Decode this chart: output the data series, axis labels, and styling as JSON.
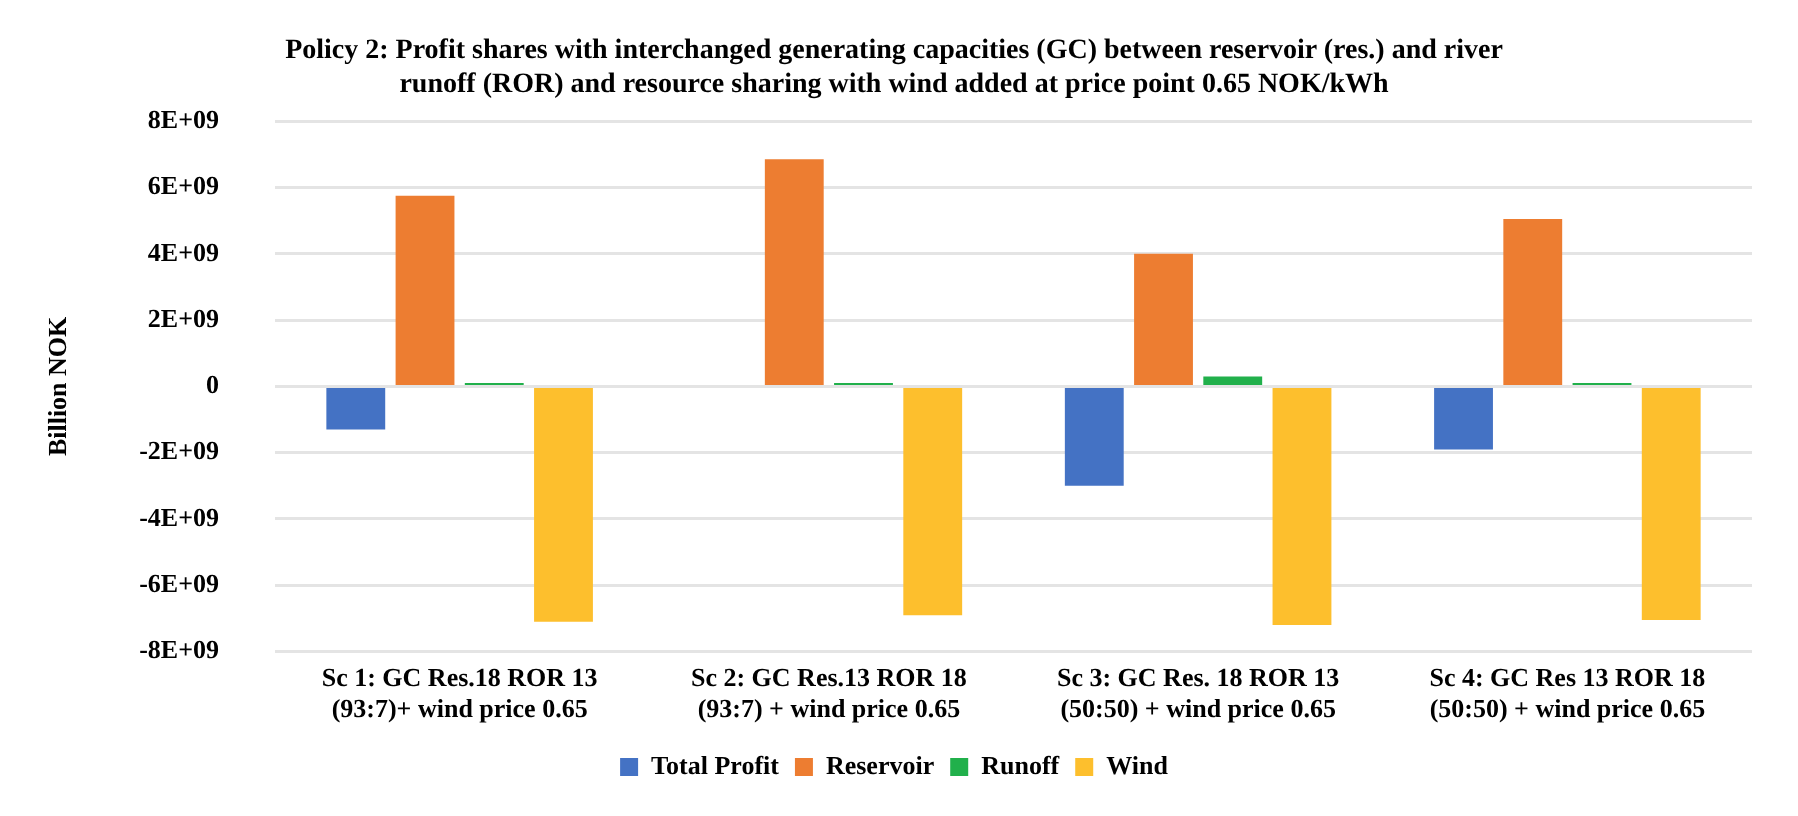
{
  "chart_data": {
    "type": "bar",
    "title": "Policy 2: Profit shares with interchanged generating capacities (GC) between reservoir (res.) and river runoff (ROR) and resource sharing with wind added at price point 0.65 NOK/kWh",
    "ylabel": "Billion NOK",
    "categories": [
      "Sc 1: GC Res.18 ROR 13 (93:7)+ wind price 0.65",
      "Sc 2: GC Res.13 ROR 18 (93:7) + wind price 0.65",
      "Sc 3: GC Res. 18 ROR 13 (50:50) + wind price 0.65",
      "Sc 4: GC Res 13 ROR 18 (50:50) + wind price 0.65"
    ],
    "series": [
      {
        "name": "Total Profit",
        "color": "#4472c4",
        "values": [
          -1300000000.0,
          0,
          -3000000000.0,
          -1900000000.0
        ]
      },
      {
        "name": "Reservoir",
        "color": "#ed7d31",
        "values": [
          5750000000.0,
          6850000000.0,
          4000000000.0,
          5050000000.0
        ]
      },
      {
        "name": "Runoff",
        "color": "#21b04b",
        "values": [
          100000000.0,
          100000000.0,
          300000000.0,
          100000000.0
        ]
      },
      {
        "name": "Wind",
        "color": "#fdbf2d",
        "values": [
          -7100000000.0,
          -6900000000.0,
          -7200000000.0,
          -7050000000.0
        ]
      }
    ],
    "ylim": [
      -8000000000.0,
      8000000000.0
    ],
    "yticks": [
      {
        "value": -8000000000.0,
        "label": "-8E+09"
      },
      {
        "value": -6000000000.0,
        "label": "-6E+09"
      },
      {
        "value": -4000000000.0,
        "label": "-4E+09"
      },
      {
        "value": -2000000000.0,
        "label": "-2E+09"
      },
      0,
      {
        "value": 2000000000.0,
        "label": "2E+09"
      },
      {
        "value": 4000000000.0,
        "label": "4E+09"
      },
      {
        "value": 6000000000.0,
        "label": "6E+09"
      },
      {
        "value": 8000000000.0,
        "label": "8E+09"
      }
    ],
    "grid": "y",
    "legend": "bottom"
  }
}
